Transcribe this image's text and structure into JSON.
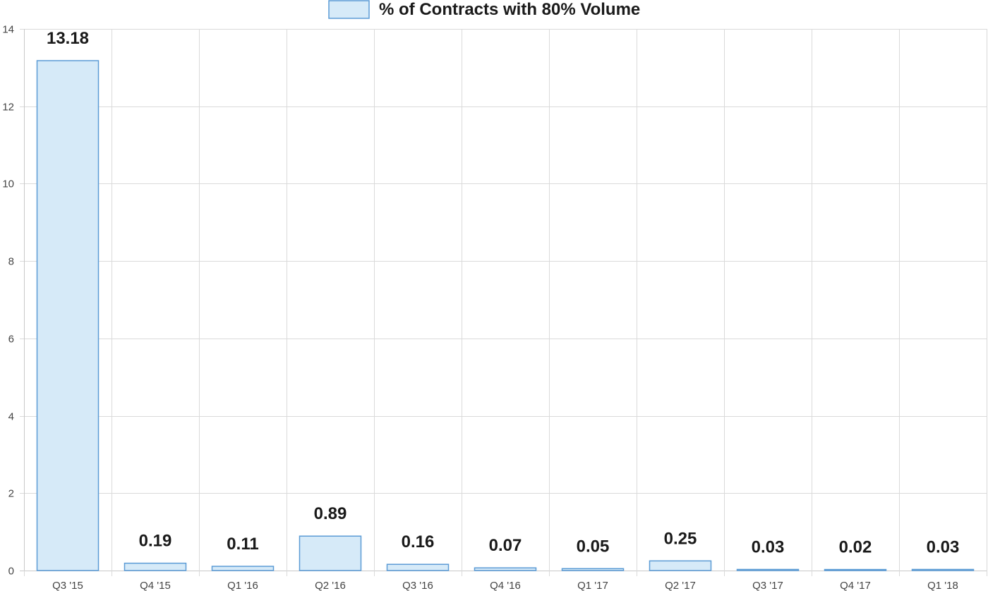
{
  "chart_data": {
    "type": "bar",
    "categories": [
      "Q3 '15",
      "Q4 '15",
      "Q1 '16",
      "Q2 '16",
      "Q3 '16",
      "Q4 '16",
      "Q1 '17",
      "Q2 '17",
      "Q3 '17",
      "Q4 '17",
      "Q1 '18"
    ],
    "series": [
      {
        "name": "% of Contracts with 80% Volume",
        "values": [
          13.18,
          0.19,
          0.11,
          0.89,
          0.16,
          0.07,
          0.05,
          0.25,
          0.03,
          0.02,
          0.03
        ],
        "data_labels": [
          "13.18",
          "0.19",
          "0.11",
          "0.89",
          "0.16",
          "0.07",
          "0.05",
          "0.25",
          "0.03",
          "0.02",
          "0.03"
        ]
      }
    ],
    "ylim": [
      0,
      14
    ],
    "yticks": [
      0,
      2,
      4,
      6,
      8,
      10,
      12,
      14
    ],
    "grid": true,
    "legend_position": "top-center",
    "colors": {
      "bar_fill": "#d6eaf8",
      "bar_stroke": "#5b9bd5",
      "grid": "#dadada",
      "label": "#1a1a1a"
    }
  }
}
